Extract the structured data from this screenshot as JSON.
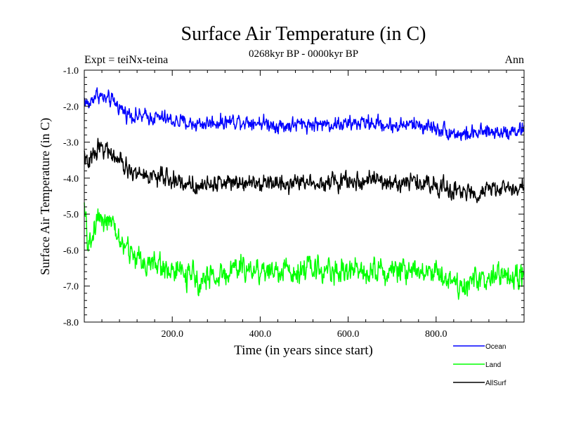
{
  "chart_data": {
    "type": "line",
    "title": "Surface Air Temperature (in C)",
    "subtitle": "0268kyr BP - 0000kyr BP",
    "left_label": "Expt = teiNx-teina",
    "right_label": "Ann",
    "xlabel": "Time (in years since start)",
    "ylabel": "Surface Air Temperature (in C)",
    "xlim": [
      0,
      1000
    ],
    "ylim": [
      -8.0,
      -1.0
    ],
    "x_ticks": [
      200,
      400,
      600,
      800
    ],
    "x_tick_labels": [
      "200.0",
      "400.0",
      "600.0",
      "800.0"
    ],
    "y_ticks": [
      -1,
      -2,
      -3,
      -4,
      -5,
      -6,
      -7,
      -8
    ],
    "y_tick_labels": [
      "-1.0",
      "-2.0",
      "-3.0",
      "-4.0",
      "-5.0",
      "-6.0",
      "-7.0",
      "-8.0"
    ],
    "legend_position": "below-right",
    "series": [
      {
        "name": "Ocean",
        "color": "#0000ff",
        "x": [
          0,
          10,
          20,
          30,
          45,
          60,
          75,
          90,
          110,
          130,
          160,
          200,
          250,
          300,
          350,
          400,
          450,
          500,
          550,
          600,
          650,
          700,
          750,
          800,
          830,
          860,
          900,
          950,
          1000
        ],
        "values": [
          -1.8,
          -2.0,
          -1.75,
          -1.65,
          -1.8,
          -1.85,
          -1.95,
          -2.15,
          -2.25,
          -2.3,
          -2.3,
          -2.4,
          -2.5,
          -2.45,
          -2.4,
          -2.45,
          -2.55,
          -2.5,
          -2.5,
          -2.5,
          -2.45,
          -2.55,
          -2.5,
          -2.6,
          -2.7,
          -2.8,
          -2.75,
          -2.7,
          -2.65
        ]
      },
      {
        "name": "Land",
        "color": "#00ff00",
        "x": [
          0,
          8,
          15,
          25,
          35,
          45,
          60,
          75,
          90,
          110,
          130,
          160,
          200,
          250,
          300,
          350,
          400,
          450,
          500,
          550,
          600,
          650,
          700,
          750,
          800,
          830,
          860,
          900,
          950,
          1000
        ],
        "values": [
          -4.9,
          -5.8,
          -5.9,
          -5.2,
          -5.0,
          -5.1,
          -5.3,
          -5.6,
          -5.9,
          -6.1,
          -6.3,
          -6.4,
          -6.55,
          -6.8,
          -6.75,
          -6.5,
          -6.55,
          -6.6,
          -6.5,
          -6.55,
          -6.6,
          -6.5,
          -6.6,
          -6.5,
          -6.6,
          -6.8,
          -7.0,
          -6.8,
          -6.75,
          -6.7
        ]
      },
      {
        "name": "AllSurf",
        "color": "#000000",
        "x": [
          0,
          8,
          15,
          25,
          35,
          45,
          60,
          75,
          90,
          110,
          130,
          160,
          200,
          250,
          300,
          350,
          400,
          450,
          500,
          550,
          600,
          650,
          700,
          750,
          800,
          830,
          860,
          900,
          950,
          1000
        ],
        "values": [
          -3.3,
          -3.7,
          -3.5,
          -3.2,
          -3.1,
          -3.15,
          -3.3,
          -3.5,
          -3.7,
          -3.85,
          -3.9,
          -3.95,
          -4.05,
          -4.2,
          -4.15,
          -4.05,
          -4.1,
          -4.15,
          -4.1,
          -4.1,
          -4.1,
          -4.05,
          -4.15,
          -4.1,
          -4.2,
          -4.3,
          -4.45,
          -4.35,
          -4.3,
          -4.25
        ]
      }
    ]
  }
}
